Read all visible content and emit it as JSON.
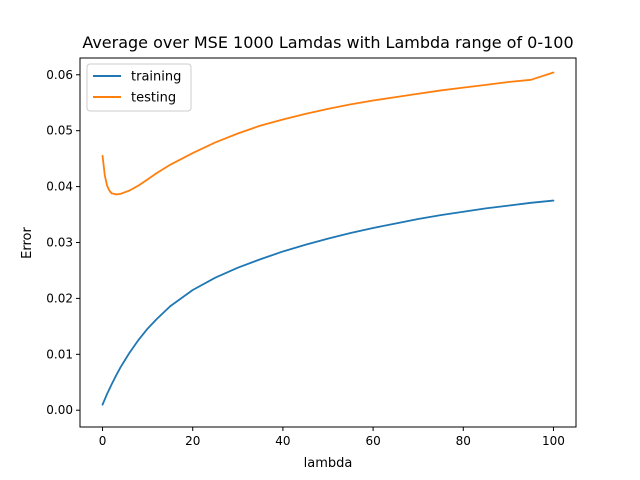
{
  "chart_data": {
    "type": "line",
    "title": "Average over MSE 1000 Lamdas with Lambda range of 0-100",
    "xlabel": "lambda",
    "ylabel": "Error",
    "xlim": [
      -5,
      105
    ],
    "ylim": [
      -0.003,
      0.063
    ],
    "xticks": [
      0,
      20,
      40,
      60,
      80,
      100
    ],
    "xtick_labels": [
      "0",
      "20",
      "40",
      "60",
      "80",
      "100"
    ],
    "yticks": [
      0.0,
      0.01,
      0.02,
      0.03,
      0.04,
      0.05,
      0.06
    ],
    "ytick_labels": [
      "0.00",
      "0.01",
      "0.02",
      "0.03",
      "0.04",
      "0.05",
      "0.06"
    ],
    "grid": false,
    "legend": "upper left",
    "series": [
      {
        "name": "training",
        "color": "#1f77b4",
        "x": [
          0,
          1,
          2,
          3,
          4,
          5,
          6,
          8,
          10,
          12,
          15,
          20,
          25,
          30,
          35,
          40,
          45,
          50,
          55,
          60,
          65,
          70,
          75,
          80,
          85,
          90,
          95,
          100
        ],
        "y": [
          0.001,
          0.0029,
          0.0046,
          0.0062,
          0.0077,
          0.009,
          0.0103,
          0.0126,
          0.0146,
          0.0163,
          0.0186,
          0.0215,
          0.0237,
          0.0255,
          0.027,
          0.0284,
          0.0296,
          0.0307,
          0.0317,
          0.0326,
          0.0334,
          0.0342,
          0.0349,
          0.0355,
          0.0361,
          0.0366,
          0.0371,
          0.0375
        ]
      },
      {
        "name": "testing",
        "color": "#ff7f0e",
        "x": [
          0,
          0.5,
          1,
          1.5,
          2,
          3,
          4,
          5,
          6,
          8,
          10,
          12,
          15,
          20,
          25,
          30,
          35,
          40,
          45,
          50,
          55,
          60,
          65,
          70,
          75,
          80,
          85,
          90,
          95,
          100
        ],
        "y": [
          0.0455,
          0.042,
          0.0402,
          0.0393,
          0.0388,
          0.0386,
          0.0387,
          0.039,
          0.0393,
          0.0402,
          0.0413,
          0.0424,
          0.0439,
          0.046,
          0.0479,
          0.0495,
          0.0509,
          0.052,
          0.053,
          0.0539,
          0.0547,
          0.0554,
          0.056,
          0.0566,
          0.0572,
          0.0577,
          0.0582,
          0.0587,
          0.0591,
          0.0604
        ]
      }
    ]
  }
}
